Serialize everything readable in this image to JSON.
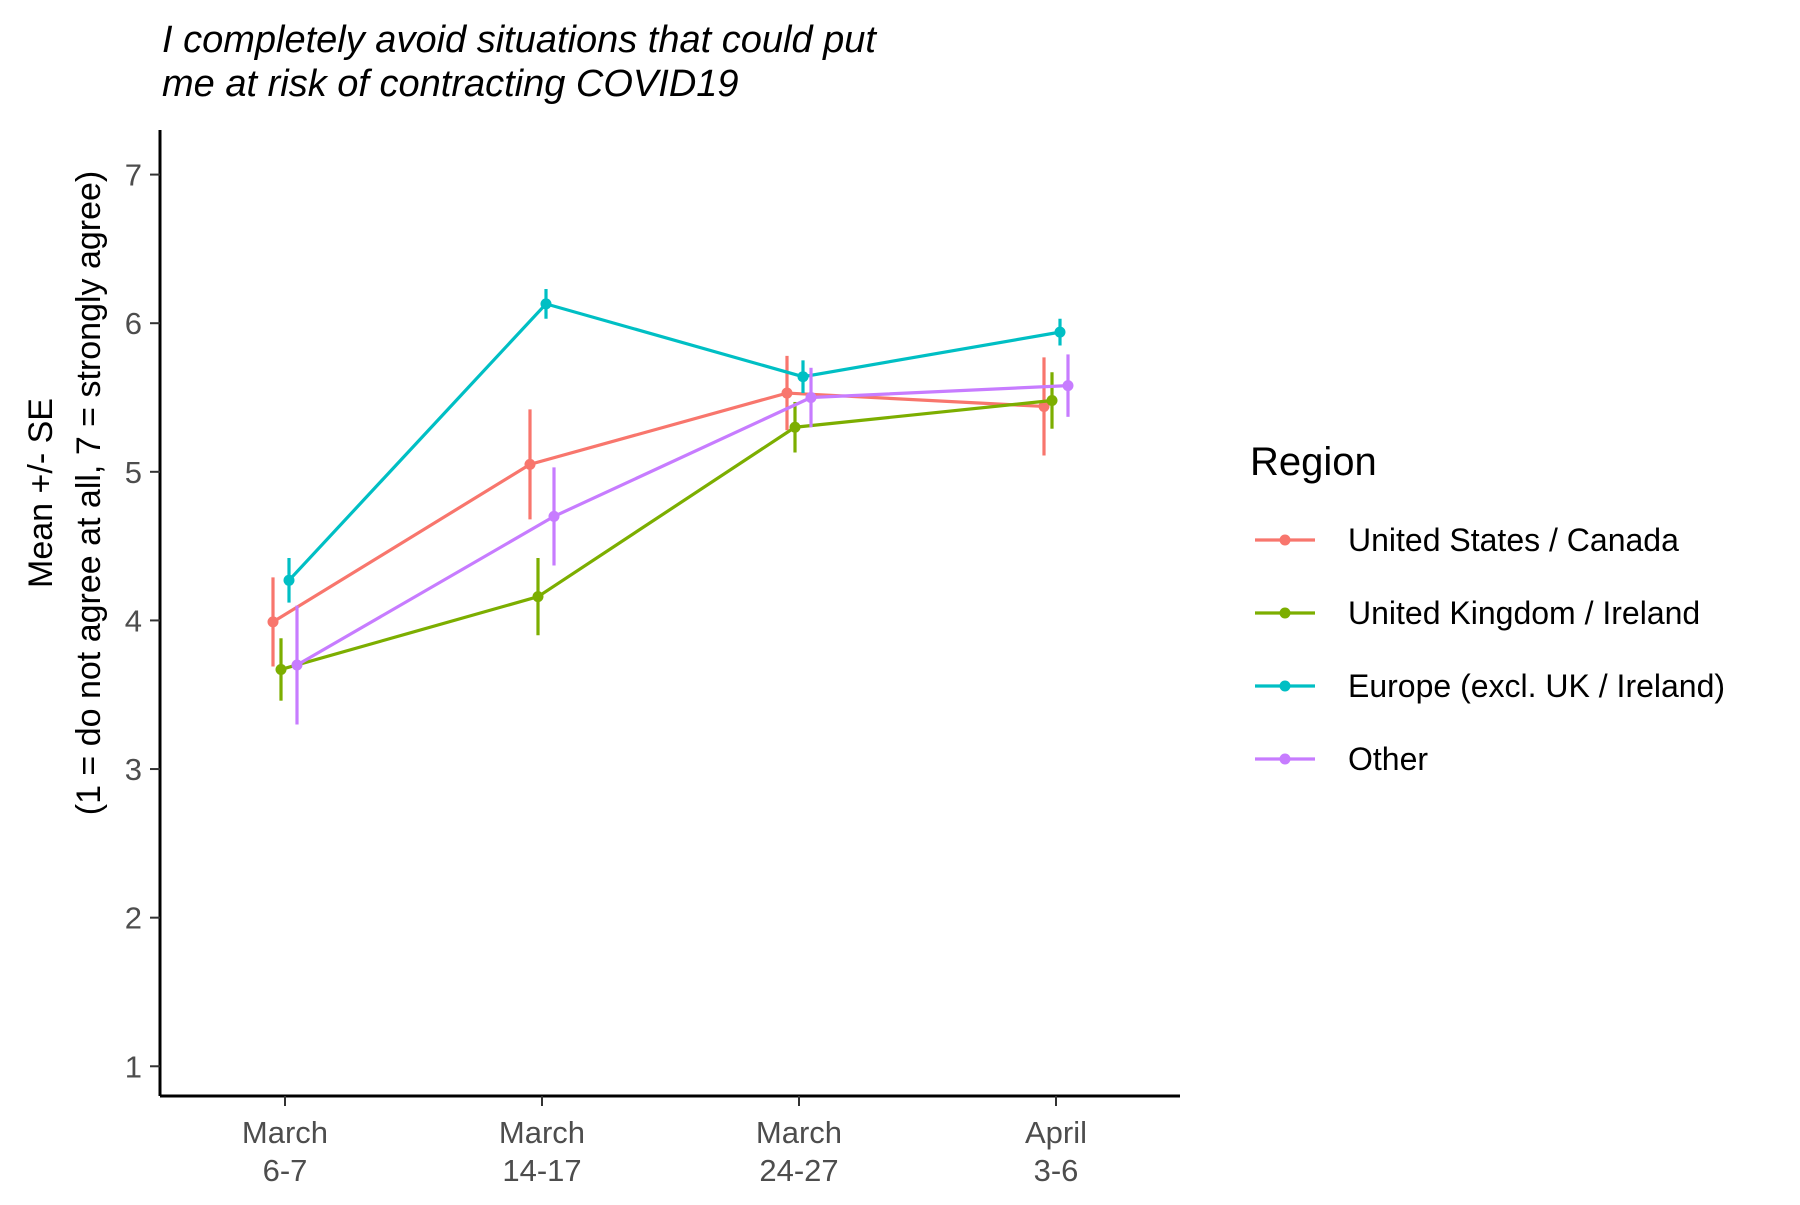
{
  "chart_data": {
    "type": "line",
    "title_lines": [
      "I completely avoid situations that could put",
      "me at risk of contracting COVID19"
    ],
    "ylabel_lines": [
      "Mean +/- SE",
      "(1 = do not agree at all, 7 = strongly agree)"
    ],
    "xlabel": "",
    "categories": [
      [
        "March",
        "6-7"
      ],
      [
        "March",
        "14-17"
      ],
      [
        "March",
        "24-27"
      ],
      [
        "April",
        "3-6"
      ]
    ],
    "ylim": [
      0.8,
      7.3
    ],
    "yticks": [
      1,
      2,
      3,
      4,
      5,
      6,
      7
    ],
    "grid": false,
    "legend": {
      "title": "Region",
      "position": "right"
    },
    "series": [
      {
        "name": "United States / Canada",
        "color": "#F8766D",
        "mean": [
          3.99,
          5.05,
          5.53,
          5.44
        ],
        "lower": [
          3.69,
          4.68,
          5.28,
          5.11
        ],
        "upper": [
          4.29,
          5.42,
          5.78,
          5.77
        ]
      },
      {
        "name": "United Kingdom / Ireland",
        "color": "#7CAE00",
        "mean": [
          3.67,
          4.16,
          5.3,
          5.48
        ],
        "lower": [
          3.46,
          3.9,
          5.13,
          5.29
        ],
        "upper": [
          3.88,
          4.42,
          5.47,
          5.67
        ]
      },
      {
        "name": "Europe (excl. UK / Ireland)",
        "color": "#00BFC4",
        "mean": [
          4.27,
          6.13,
          5.64,
          5.94
        ],
        "lower": [
          4.12,
          6.03,
          5.53,
          5.85
        ],
        "upper": [
          4.42,
          6.23,
          5.75,
          6.03
        ]
      },
      {
        "name": "Other",
        "color": "#C77CFF",
        "mean": [
          3.7,
          4.7,
          5.5,
          5.58
        ],
        "lower": [
          3.3,
          4.37,
          5.3,
          5.37
        ],
        "upper": [
          4.1,
          5.03,
          5.7,
          5.79
        ]
      }
    ]
  }
}
